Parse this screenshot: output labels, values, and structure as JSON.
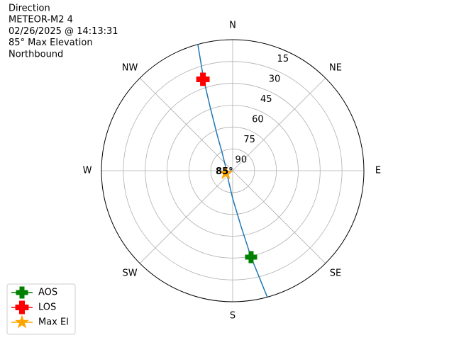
{
  "chart_data": {
    "type": "polar",
    "annotations": [
      "Direction",
      "METEOR-M2 4",
      "02/26/2025 @ 14:13:31",
      "85° Max Elevation",
      "Northbound"
    ],
    "xticks": [
      {
        "value": 0,
        "label": "N"
      },
      {
        "value": 45,
        "label": "NE"
      },
      {
        "value": 90,
        "label": "E"
      },
      {
        "value": 135,
        "label": "SE"
      },
      {
        "value": 180,
        "label": "S"
      },
      {
        "value": 225,
        "label": "SW"
      },
      {
        "value": 270,
        "label": "W"
      },
      {
        "value": 315,
        "label": "NW"
      }
    ],
    "ylim": [
      90,
      0
    ],
    "yticks": [
      15,
      30,
      45,
      60,
      75,
      90
    ],
    "grid": true,
    "line": {
      "color": "#1f77b4",
      "x": [
        344.6,
        342.4,
        340.6,
        336.7,
        330,
        301,
        203,
        180,
        171.4,
        168,
        164.7
      ],
      "values": [
        0,
        24.1,
        43.1,
        63,
        75.4,
        84.3,
        82.6,
        71,
        51.1,
        29.3,
        0
      ]
    },
    "series": [
      {
        "name": "AOS",
        "color": "#008000",
        "marker": "plus",
        "x": [
          168
        ],
        "values": [
          29.3
        ]
      },
      {
        "name": "LOS",
        "color": "#ff0000",
        "marker": "x",
        "x": [
          342
        ],
        "values": [
          24
        ]
      },
      {
        "name": "Max El",
        "color": "#ffa500",
        "marker": "star",
        "x": [
          250
        ],
        "values": [
          85
        ],
        "value_labels": [
          "85°"
        ]
      }
    ],
    "legend": "lower left"
  }
}
